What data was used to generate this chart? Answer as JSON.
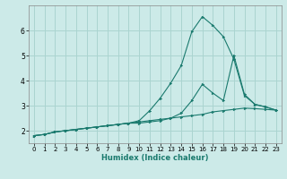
{
  "xlabel": "Humidex (Indice chaleur)",
  "background_color": "#cceae8",
  "grid_color": "#aad4d0",
  "line_color": "#1a7a6e",
  "xlim": [
    -0.5,
    23.5
  ],
  "ylim": [
    1.5,
    7.0
  ],
  "yticks": [
    2,
    3,
    4,
    5,
    6
  ],
  "xticks": [
    0,
    1,
    2,
    3,
    4,
    5,
    6,
    7,
    8,
    9,
    10,
    11,
    12,
    13,
    14,
    15,
    16,
    17,
    18,
    19,
    20,
    21,
    22,
    23
  ],
  "line1_x": [
    0,
    1,
    2,
    3,
    4,
    5,
    6,
    7,
    8,
    9,
    10,
    11,
    12,
    13,
    14,
    15,
    16,
    17,
    18,
    19,
    20,
    21,
    22,
    23
  ],
  "line1_y": [
    1.8,
    1.85,
    1.95,
    2.0,
    2.05,
    2.1,
    2.15,
    2.2,
    2.25,
    2.3,
    2.35,
    2.4,
    2.45,
    2.5,
    2.55,
    2.6,
    2.65,
    2.75,
    2.8,
    2.85,
    2.9,
    2.88,
    2.85,
    2.82
  ],
  "line2_x": [
    0,
    1,
    2,
    3,
    4,
    5,
    6,
    7,
    8,
    9,
    10,
    11,
    12,
    13,
    14,
    15,
    16,
    17,
    18,
    19,
    20,
    21,
    22,
    23
  ],
  "line2_y": [
    1.8,
    1.85,
    1.95,
    2.0,
    2.05,
    2.1,
    2.15,
    2.2,
    2.25,
    2.3,
    2.3,
    2.35,
    2.4,
    2.5,
    2.7,
    3.2,
    3.85,
    3.5,
    3.2,
    5.0,
    3.45,
    3.05,
    2.95,
    2.82
  ],
  "line3_x": [
    0,
    1,
    2,
    3,
    4,
    5,
    6,
    7,
    8,
    9,
    10,
    11,
    12,
    13,
    14,
    15,
    16,
    17,
    18,
    19,
    20,
    21,
    22,
    23
  ],
  "line3_y": [
    1.8,
    1.85,
    1.95,
    2.0,
    2.05,
    2.1,
    2.15,
    2.2,
    2.25,
    2.3,
    2.4,
    2.8,
    3.3,
    3.9,
    4.6,
    5.95,
    6.55,
    6.2,
    5.75,
    4.85,
    3.4,
    3.05,
    2.95,
    2.82
  ]
}
